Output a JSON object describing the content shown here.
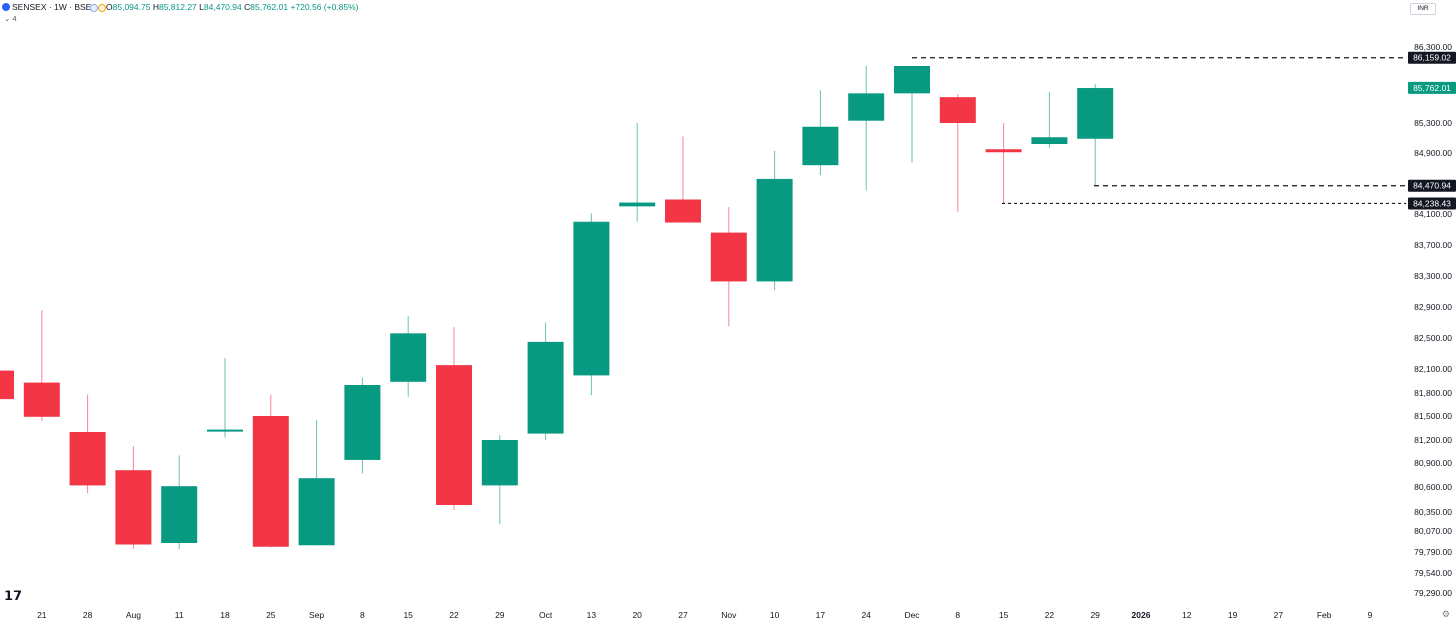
{
  "header": {
    "symbol_title": "SENSEX · 1W · BSE",
    "ohlc": [
      {
        "label": "O",
        "value": "85,094.75"
      },
      {
        "label": "H",
        "value": "85,812.27"
      },
      {
        "label": "L",
        "value": "84,470.94"
      },
      {
        "label": "C",
        "value": "85,762.01"
      }
    ],
    "change": "+720.56 (+0.85%)",
    "collapse_label": "⌄ 4",
    "currency": "INR"
  },
  "chart_data": {
    "type": "candlestick",
    "price_range": [
      79290,
      86650
    ],
    "price_ticks": [
      "86,300.00",
      "85,300.00",
      "84,900.00",
      "84,100.00",
      "83,700.00",
      "83,300.00",
      "82,900.00",
      "82,500.00",
      "82,100.00",
      "81,800.00",
      "81,500.00",
      "81,200.00",
      "80,900.00",
      "80,600.00",
      "80,350.00",
      "80,070.00",
      "79,790.00",
      "79,540.00",
      "79,290.00"
    ],
    "x_labels": [
      "21",
      "28",
      "Aug",
      "11",
      "18",
      "25",
      "Sep",
      "8",
      "15",
      "22",
      "29",
      "Oct",
      "13",
      "20",
      "27",
      "Nov",
      "10",
      "17",
      "24",
      "Dec",
      "8",
      "15",
      "22",
      "29",
      "2026",
      "12",
      "19",
      "27",
      "Feb",
      "9"
    ],
    "candles": [
      {
        "o": 82080,
        "h": 82080,
        "l": 81720,
        "c": 81720
      },
      {
        "o": 81930,
        "h": 82860,
        "l": 81440,
        "c": 81490
      },
      {
        "o": 81300,
        "h": 81780,
        "l": 80540,
        "c": 80620
      },
      {
        "o": 80810,
        "h": 81120,
        "l": 79830,
        "c": 79890
      },
      {
        "o": 79910,
        "h": 81000,
        "l": 79830,
        "c": 80610
      },
      {
        "o": 81310,
        "h": 82240,
        "l": 81230,
        "c": 81330
      },
      {
        "o": 81500,
        "h": 81780,
        "l": 79850,
        "c": 79860
      },
      {
        "o": 79880,
        "h": 81450,
        "l": 79880,
        "c": 80710
      },
      {
        "o": 80940,
        "h": 81990,
        "l": 80770,
        "c": 81900
      },
      {
        "o": 81940,
        "h": 82780,
        "l": 81750,
        "c": 82560
      },
      {
        "o": 82150,
        "h": 82640,
        "l": 80370,
        "c": 80420
      },
      {
        "o": 80620,
        "h": 81260,
        "l": 80170,
        "c": 81200
      },
      {
        "o": 81280,
        "h": 82700,
        "l": 81200,
        "c": 82450
      },
      {
        "o": 82020,
        "h": 84110,
        "l": 81770,
        "c": 84000
      },
      {
        "o": 84200,
        "h": 85300,
        "l": 84000,
        "c": 84250
      },
      {
        "o": 84290,
        "h": 85120,
        "l": 83990,
        "c": 83990
      },
      {
        "o": 83860,
        "h": 84190,
        "l": 82650,
        "c": 83230
      },
      {
        "o": 83230,
        "h": 84930,
        "l": 83120,
        "c": 84560
      },
      {
        "o": 84740,
        "h": 85730,
        "l": 84610,
        "c": 85250
      },
      {
        "o": 85330,
        "h": 86050,
        "l": 84410,
        "c": 85690
      },
      {
        "o": 85690,
        "h": 86050,
        "l": 84770,
        "c": 86050
      },
      {
        "o": 85640,
        "h": 85680,
        "l": 84130,
        "c": 85300
      },
      {
        "o": 84950,
        "h": 85300,
        "l": 84240,
        "c": 84910
      },
      {
        "o": 85020,
        "h": 85710,
        "l": 84970,
        "c": 85110
      },
      {
        "o": 85090,
        "h": 85810,
        "l": 84470,
        "c": 85760
      }
    ],
    "levels": [
      {
        "price": 86159.02,
        "label": "86,159.02",
        "color": "#131722",
        "dash": "5,4"
      },
      {
        "price": 84470.94,
        "label": "84,470.94",
        "color": "#131722",
        "dash": "5,4"
      },
      {
        "price": 84238.43,
        "label": "84,238.43",
        "color": "#131722",
        "dash": "3,3"
      }
    ],
    "last_price": {
      "price": 85762.01,
      "label": "85,762.01",
      "color": "#089981"
    },
    "colors": {
      "up": "#089981",
      "down": "#f23645",
      "grid_text": "#131722",
      "axis_text": "#131722"
    }
  }
}
